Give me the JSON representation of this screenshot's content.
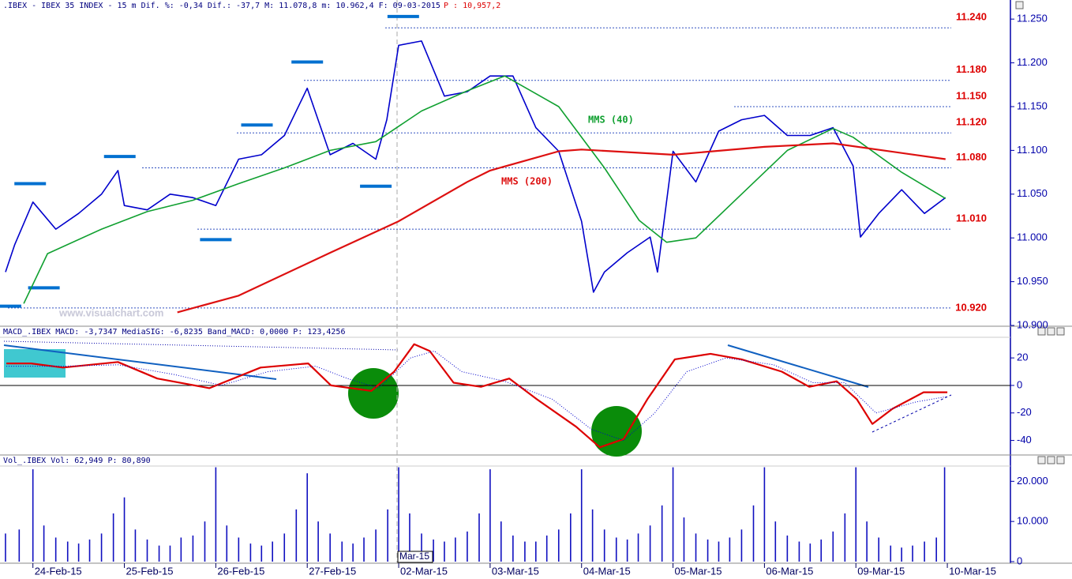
{
  "chart_data": [
    {
      "type": "line",
      "title": ".IBEX - IBEX 35 INDEX -  15 m Dif. %: -0,34 Dif.: -37,7 M: 11.078,8 m: 10.962,4 F: 09-03-2015",
      "price_label": "P : 10,957,2",
      "watermark": "www.visualchart.com",
      "xlim": [
        -0.36,
        10.69
      ],
      "ylim": [
        10900,
        11270
      ],
      "yticks": [
        {
          "value": 10900,
          "label": "10.900"
        },
        {
          "value": 10950,
          "label": "10.950"
        },
        {
          "value": 11000,
          "label": "11.000"
        },
        {
          "value": 11050,
          "label": "11.050"
        },
        {
          "value": 11100,
          "label": "11.100"
        },
        {
          "value": 11150,
          "label": "11.150"
        },
        {
          "value": 11200,
          "label": "11.200"
        },
        {
          "value": 11250,
          "label": "11.250"
        }
      ],
      "levels": [
        {
          "value": 11240,
          "label": "11.240"
        },
        {
          "value": 11180,
          "label": "11.180"
        },
        {
          "value": 11150,
          "label": "11.150"
        },
        {
          "value": 11120,
          "label": "11.120"
        },
        {
          "value": 11080,
          "label": "11.080"
        },
        {
          "value": 11010,
          "label": "11.010"
        },
        {
          "value": 10920,
          "label": "10.920"
        }
      ],
      "level_color": "#dd0000",
      "markers": {
        "color": "#0070d0",
        "x": [
          -0.3,
          -0.03,
          0.12,
          0.95,
          2.0,
          2.45,
          3.0,
          3.75,
          4.05
        ],
        "values": [
          10922,
          11062,
          10943,
          11093,
          10998,
          11129,
          11201,
          11059,
          11253
        ]
      },
      "series": [
        {
          "color": "#0000cc",
          "width": 1.6,
          "x": [
            -0.3,
            -0.2,
            0,
            0.25,
            0.5,
            0.75,
            0.93,
            1.0,
            1.25,
            1.5,
            1.75,
            2.0,
            2.25,
            2.5,
            2.75,
            3.0,
            3.25,
            3.5,
            3.75,
            3.87,
            4.0,
            4.25,
            4.5,
            4.75,
            5.0,
            5.25,
            5.5,
            5.75,
            6.0,
            6.13,
            6.25,
            6.5,
            6.75,
            6.83,
            7.0,
            7.25,
            7.5,
            7.75,
            8.0,
            8.25,
            8.5,
            8.75,
            8.97,
            9.05,
            9.25,
            9.5,
            9.75,
            9.98
          ],
          "values": [
            10961,
            10992,
            11041,
            11010,
            11028,
            11050,
            11077,
            11037,
            11032,
            11050,
            11046,
            11037,
            11090,
            11095,
            11117,
            11171,
            11095,
            11108,
            11090,
            11135,
            11220,
            11225,
            11162,
            11167,
            11185,
            11185,
            11126,
            11099,
            11019,
            10938,
            10961,
            10983,
            11001,
            10961,
            11099,
            11064,
            11122,
            11135,
            11140,
            11117,
            11117,
            11126,
            11082,
            11001,
            11028,
            11055,
            11028,
            11046
          ]
        },
        {
          "name": "MMS (40)",
          "color": "#10a030",
          "width": 1.6,
          "x": [
            -0.1,
            0.16,
            0.75,
            1.25,
            1.75,
            2.25,
            2.75,
            3.25,
            3.75,
            4.25,
            4.75,
            5.16,
            5.75,
            6.25,
            6.63,
            6.93,
            7.25,
            7.75,
            8.25,
            8.75,
            8.97,
            9.5,
            9.98
          ],
          "values": [
            10925,
            10982,
            11010,
            11030,
            11043,
            11062,
            11080,
            11100,
            11110,
            11145,
            11168,
            11185,
            11150,
            11080,
            11020,
            10995,
            11000,
            11050,
            11100,
            11125,
            11115,
            11075,
            11045
          ]
        },
        {
          "name": "MMS (200)",
          "color": "#dd1010",
          "width": 2.2,
          "x": [
            1.58,
            2.25,
            3.25,
            4.0,
            4.75,
            5.0,
            5.75,
            6.0,
            7.0,
            8.0,
            8.75,
            9.98
          ],
          "values": [
            10915,
            10934,
            10983,
            11019,
            11064,
            11077,
            11099,
            11101,
            11095,
            11104,
            11108,
            11090
          ]
        }
      ]
    },
    {
      "type": "line",
      "title": "MACD_.IBEX MACD: -3,7347 MediaSIG: -6,8235 Band_MACD: 0,0000 P: 123,4256",
      "xlim": [
        -0.36,
        10.69
      ],
      "ylim": [
        -50,
        35
      ],
      "yticks": [
        -40,
        -20,
        0,
        20
      ],
      "series": [
        {
          "color": "#dd0000",
          "width": 2.2,
          "x": [
            -0.29,
            -0.02,
            0.33,
            0.93,
            1.36,
            1.93,
            2.49,
            3.01,
            3.26,
            3.7,
            3.95,
            4.17,
            4.34,
            4.6,
            4.9,
            5.21,
            5.51,
            5.94,
            6.2,
            6.46,
            6.72,
            7.02,
            7.41,
            7.75,
            8.19,
            8.49,
            8.79,
            9.01,
            9.18,
            9.4,
            9.74,
            10.0
          ],
          "values": [
            16,
            16,
            13,
            17,
            5,
            -2,
            13,
            16,
            0,
            -4,
            10,
            30,
            25,
            2,
            -1,
            5,
            -10,
            -30,
            -45,
            -39,
            -10,
            19,
            23,
            19,
            10,
            -1,
            3,
            -10,
            -28,
            -17,
            -5,
            -5
          ]
        },
        {
          "color": "#0000cc",
          "width": 1,
          "style": "dotted",
          "x": [
            -0.29,
            0.33,
            0.93,
            1.54,
            2.06,
            2.57,
            3.09,
            3.44,
            3.78,
            4.13,
            4.39,
            4.69,
            5.16,
            5.68,
            6.11,
            6.46,
            6.8,
            7.15,
            7.58,
            8.1,
            8.53,
            8.88,
            9.22,
            9.66,
            10.0
          ],
          "values": [
            14,
            14,
            15,
            8,
            0,
            10,
            14,
            5,
            -2,
            20,
            25,
            10,
            3,
            -10,
            -32,
            -40,
            -20,
            10,
            20,
            15,
            2,
            2,
            -20,
            -12,
            -8
          ]
        }
      ]
    },
    {
      "type": "bar",
      "title": "Vol_.IBEX Vol: 62,949 P: 80,890",
      "annotation": "Mar-15",
      "color": "#1010c0",
      "xlim": [
        -0.36,
        10.69
      ],
      "ylim": [
        0,
        24000
      ],
      "yticks": [
        0,
        {
          "value": 10000,
          "label": "10.000"
        },
        {
          "value": 20000,
          "label": "20.000"
        }
      ],
      "xticks": [
        {
          "value": 0,
          "label": "24-Feb-15"
        },
        {
          "value": 1,
          "label": "25-Feb-15"
        },
        {
          "value": 2,
          "label": "26-Feb-15"
        },
        {
          "value": 3,
          "label": "27-Feb-15"
        },
        {
          "value": 4,
          "label": "02-Mar-15"
        },
        {
          "value": 5,
          "label": "03-Mar-15"
        },
        {
          "value": 6,
          "label": "04-Mar-15"
        },
        {
          "value": 7,
          "label": "05-Mar-15"
        },
        {
          "value": 8,
          "label": "06-Mar-15"
        },
        {
          "value": 9,
          "label": "09-Mar-15"
        },
        {
          "value": 10,
          "label": "10-Mar-15"
        }
      ],
      "x": [
        -0.3,
        -0.15,
        0,
        0.12,
        0.25,
        0.38,
        0.5,
        0.62,
        0.75,
        0.88,
        1,
        1.12,
        1.25,
        1.38,
        1.5,
        1.62,
        1.75,
        1.88,
        2,
        2.12,
        2.25,
        2.38,
        2.5,
        2.62,
        2.75,
        2.88,
        3,
        3.12,
        3.25,
        3.38,
        3.5,
        3.62,
        3.75,
        3.88,
        4,
        4.12,
        4.25,
        4.38,
        4.5,
        4.62,
        4.75,
        4.88,
        5,
        5.12,
        5.25,
        5.38,
        5.5,
        5.62,
        5.75,
        5.88,
        6,
        6.12,
        6.25,
        6.38,
        6.5,
        6.62,
        6.75,
        6.88,
        7,
        7.12,
        7.25,
        7.38,
        7.5,
        7.62,
        7.75,
        7.88,
        8,
        8.12,
        8.25,
        8.38,
        8.5,
        8.62,
        8.75,
        8.88,
        9,
        9.12,
        9.25,
        9.38,
        9.5,
        9.62,
        9.75,
        9.88,
        9.97
      ],
      "values": [
        7000,
        8000,
        23000,
        9000,
        6000,
        5000,
        4500,
        5500,
        7000,
        12000,
        16000,
        8000,
        5500,
        4000,
        4000,
        6000,
        6500,
        10000,
        23500,
        9000,
        6000,
        4500,
        4000,
        5000,
        7000,
        13000,
        22000,
        10000,
        7000,
        5000,
        4500,
        6000,
        8000,
        13000,
        23500,
        12000,
        7000,
        5500,
        5000,
        6000,
        7500,
        12000,
        23000,
        10000,
        6500,
        5000,
        5000,
        6500,
        8000,
        12000,
        23000,
        13000,
        8000,
        6000,
        5500,
        7000,
        9000,
        14000,
        23500,
        11000,
        7000,
        5500,
        5000,
        6000,
        8000,
        14000,
        23500,
        10000,
        6500,
        5000,
        4500,
        5500,
        7500,
        12000,
        23500,
        10000,
        6000,
        4000,
        3500,
        4000,
        5000,
        6000,
        23500
      ]
    }
  ]
}
